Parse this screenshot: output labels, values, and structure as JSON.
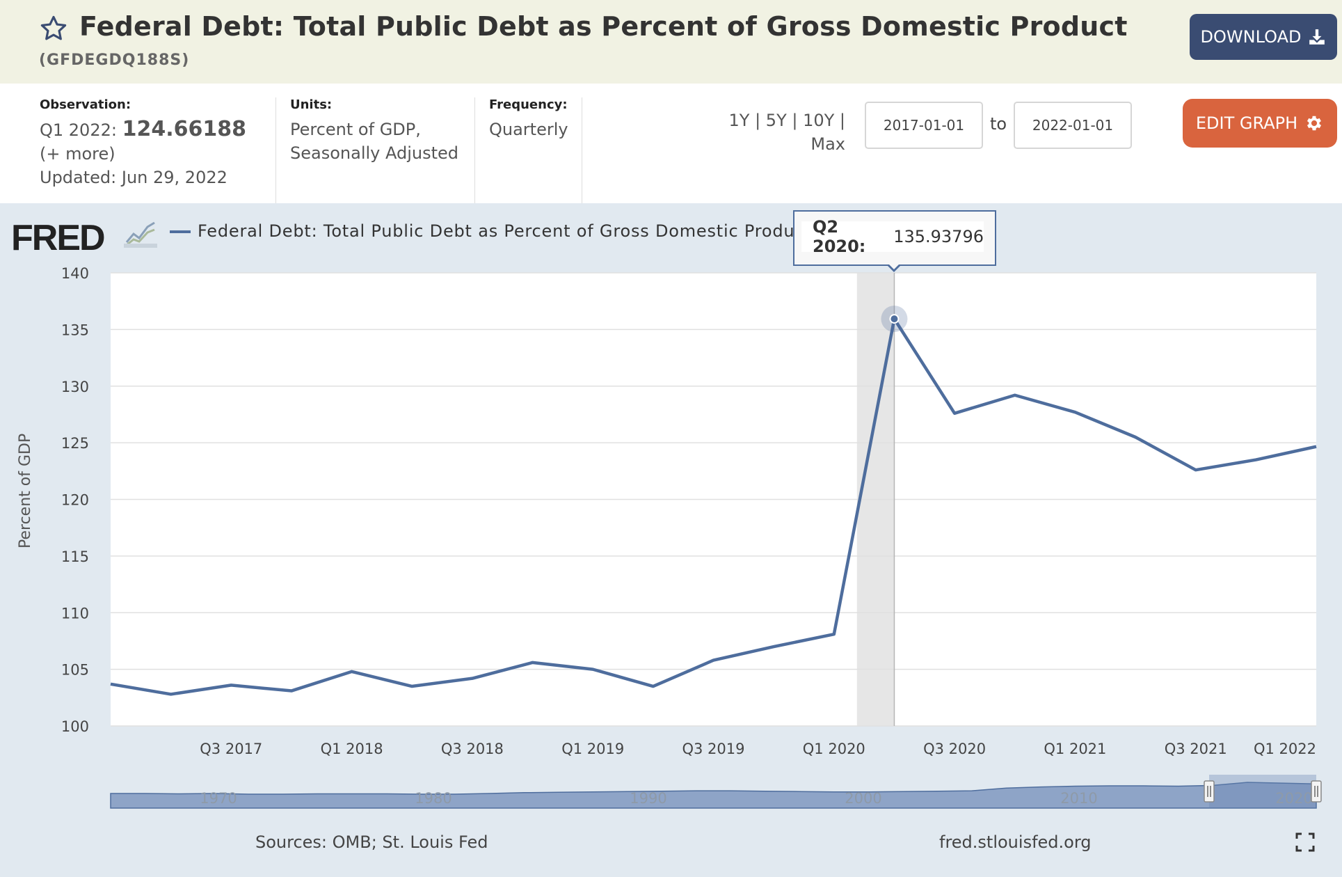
{
  "header": {
    "title": "Federal Debt: Total Public Debt as Percent of Gross Domestic Product",
    "series_id": "(GFDEGDQ188S)",
    "download_label": "DOWNLOAD",
    "colors": {
      "header_bg": "#f1f2e3",
      "download_bg": "#3a4c72",
      "edit_bg": "#d9643e",
      "series": "#4e6d9d"
    }
  },
  "info": {
    "observation_label": "Observation:",
    "observation_period": "Q1 2022:",
    "observation_value": "124.66188",
    "more_label": "(+ more)",
    "updated": "Updated: Jun 29, 2022",
    "units_label": "Units:",
    "units_line1": "Percent of GDP,",
    "units_line2": "Seasonally Adjusted",
    "frequency_label": "Frequency:",
    "frequency_value": "Quarterly",
    "range_line1": "1Y | 5Y | 10Y |",
    "range_line2": "Max",
    "start_date": "2017-01-01",
    "to_label": "to",
    "end_date": "2022-01-01",
    "edit_label": "EDIT GRAPH"
  },
  "chart": {
    "logo": "FRED",
    "legend_text": "Federal Debt: Total Public Debt as Percent of Gross Domestic Product",
    "tooltip_period": "Q2 2020:",
    "tooltip_value": "135.93796",
    "source": "Sources: OMB; St. Louis Fed",
    "site": "fred.stlouisfed.org"
  },
  "chart_data": {
    "type": "line",
    "title": "Federal Debt: Total Public Debt as Percent of Gross Domestic Product",
    "ylabel": "Percent of GDP",
    "xlabel": "",
    "ylim": [
      100,
      140
    ],
    "yticks": [
      100,
      105,
      110,
      115,
      120,
      125,
      130,
      135,
      140
    ],
    "xticks": [
      "Q3 2017",
      "Q1 2018",
      "Q3 2018",
      "Q1 2019",
      "Q3 2019",
      "Q1 2020",
      "Q3 2020",
      "Q1 2021",
      "Q3 2021",
      "Q1 2022"
    ],
    "grid": true,
    "recession_shading": [
      "2020-01-01",
      "2020-04-01"
    ],
    "x": [
      "2017-01-01",
      "2017-04-01",
      "2017-07-01",
      "2017-10-01",
      "2018-01-01",
      "2018-04-01",
      "2018-07-01",
      "2018-10-01",
      "2019-01-01",
      "2019-04-01",
      "2019-07-01",
      "2019-10-01",
      "2020-01-01",
      "2020-04-01",
      "2020-07-01",
      "2020-10-01",
      "2021-01-01",
      "2021-04-01",
      "2021-07-01",
      "2021-10-01",
      "2022-01-01"
    ],
    "series": [
      {
        "name": "Federal Debt: Total Public Debt as Percent of Gross Domestic Product",
        "values": [
          103.7,
          102.8,
          103.6,
          103.1,
          104.8,
          103.5,
          104.2,
          105.6,
          105.0,
          103.5,
          105.8,
          107.0,
          108.1,
          135.93796,
          127.6,
          129.2,
          127.7,
          125.5,
          122.6,
          123.5,
          124.66188
        ]
      }
    ],
    "navigator": {
      "tick_labels": [
        "1970",
        "1980",
        "1990",
        "2000",
        "2010",
        "2020"
      ]
    }
  }
}
